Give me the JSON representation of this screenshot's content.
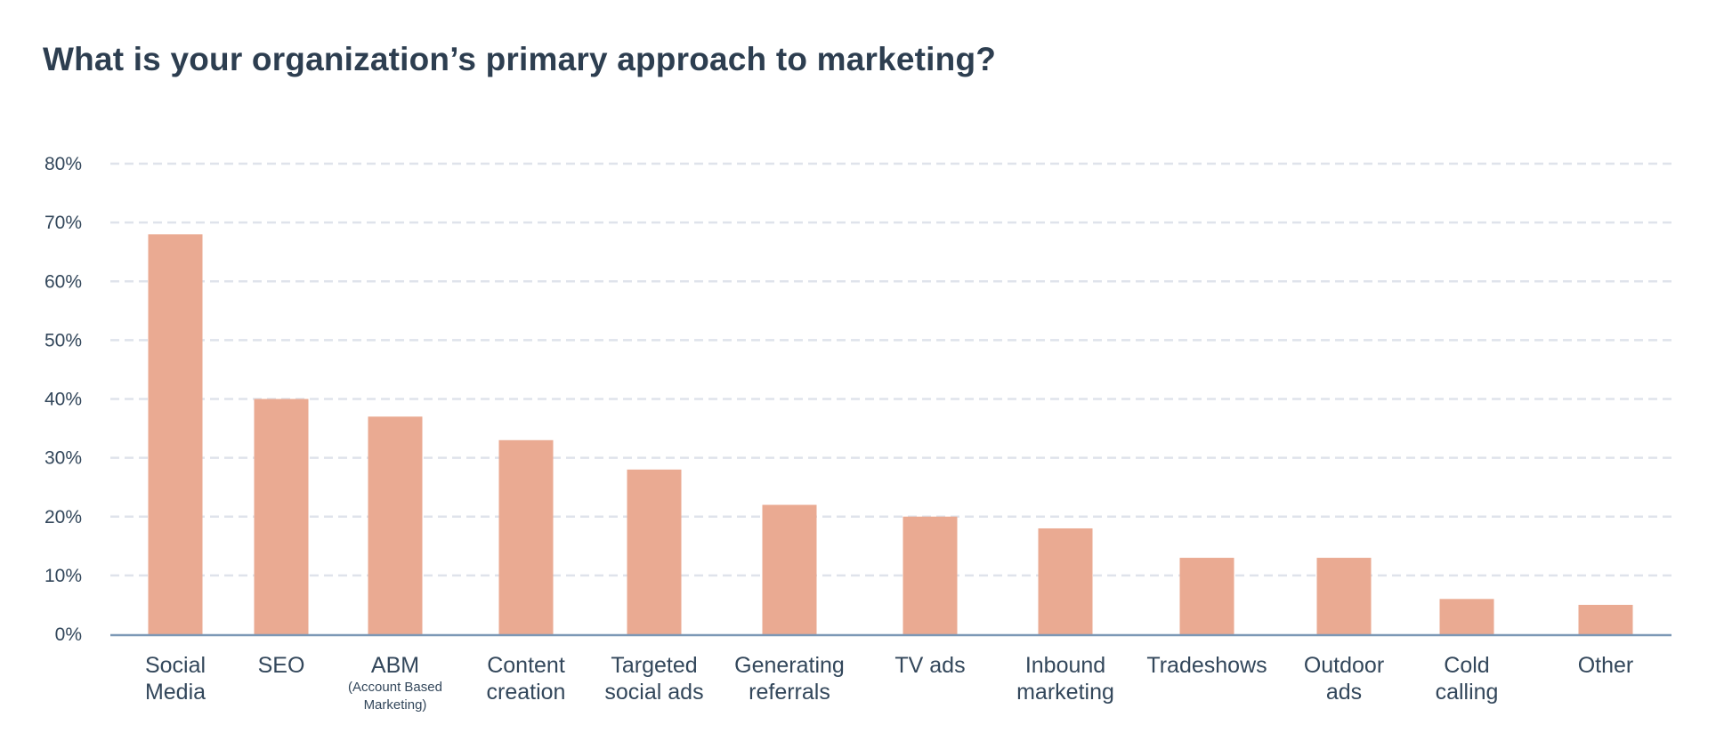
{
  "chart_data": {
    "type": "bar",
    "title": "What is your organization’s primary approach to marketing?",
    "xlabel": "",
    "ylabel": "",
    "ylim": [
      0,
      80
    ],
    "yticks": [
      0,
      10,
      20,
      30,
      40,
      50,
      60,
      70,
      80
    ],
    "ytick_labels": [
      "0%",
      "10%",
      "20%",
      "30%",
      "40%",
      "50%",
      "60%",
      "70%",
      "80%"
    ],
    "grid": true,
    "bar_color": "#eaaa92",
    "grid_color": "#dfe3eb",
    "axis_color": "#7c98b6",
    "categories": [
      {
        "label": [
          "Social",
          "Media"
        ],
        "sub": []
      },
      {
        "label": [
          "SEO"
        ],
        "sub": []
      },
      {
        "label": [
          "ABM"
        ],
        "sub": [
          "(Account Based",
          "Marketing)"
        ]
      },
      {
        "label": [
          "Content",
          "creation"
        ],
        "sub": []
      },
      {
        "label": [
          "Targeted",
          "social ads"
        ],
        "sub": []
      },
      {
        "label": [
          "Generating",
          "referrals"
        ],
        "sub": []
      },
      {
        "label": [
          "TV ads"
        ],
        "sub": []
      },
      {
        "label": [
          "Inbound",
          "marketing"
        ],
        "sub": []
      },
      {
        "label": [
          "Tradeshows"
        ],
        "sub": []
      },
      {
        "label": [
          "Outdoor",
          "ads"
        ],
        "sub": []
      },
      {
        "label": [
          "Cold",
          "calling"
        ],
        "sub": []
      },
      {
        "label": [
          "Other"
        ],
        "sub": []
      }
    ],
    "values": [
      68,
      40,
      37,
      33,
      28,
      22,
      20,
      18,
      13,
      13,
      6,
      5
    ]
  }
}
